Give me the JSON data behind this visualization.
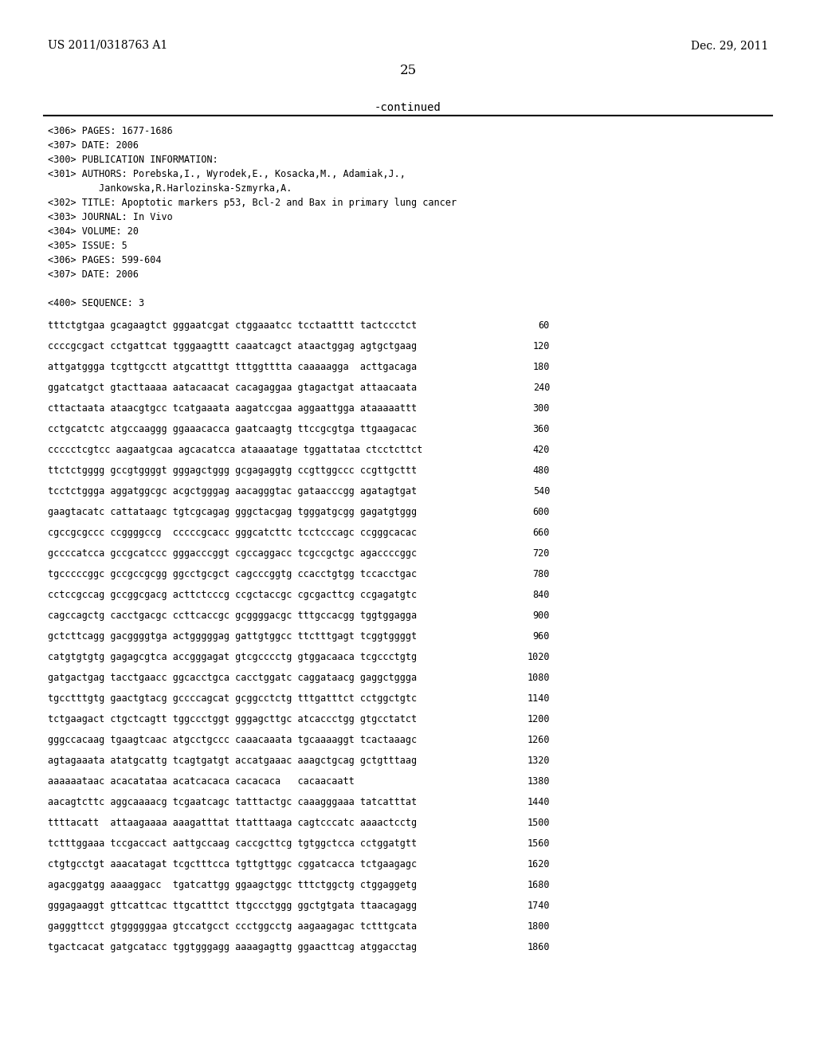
{
  "header_left": "US 2011/0318763 A1",
  "header_right": "Dec. 29, 2011",
  "page_number": "25",
  "continued_text": "-continued",
  "bg_color": "#ffffff",
  "text_color": "#000000",
  "metadata_lines": [
    "<306> PAGES: 1677-1686",
    "<307> DATE: 2006",
    "<300> PUBLICATION INFORMATION:",
    "<301> AUTHORS: Porebska,I., Wyrodek,E., Kosacka,M., Adamiak,J.,",
    "         Jankowska,R.Harlozinska-Szmyrka,A.",
    "<302> TITLE: Apoptotic markers p53, Bcl-2 and Bax in primary lung cancer",
    "<303> JOURNAL: In Vivo",
    "<304> VOLUME: 20",
    "<305> ISSUE: 5",
    "<306> PAGES: 599-604",
    "<307> DATE: 2006",
    "",
    "<400> SEQUENCE: 3"
  ],
  "sequence_lines": [
    [
      "tttctgtgaa gcagaagtct gggaatcgat ctggaaatcc tcctaatttt tactccctct",
      "60"
    ],
    [
      "ccccgcgact cctgattcat tgggaagttt caaatcagct ataactggag agtgctgaag",
      "120"
    ],
    [
      "attgatggga tcgttgcctt atgcatttgt tttggtttta caaaaagga  acttgacaga",
      "180"
    ],
    [
      "ggatcatgct gtacttaaaa aatacaacat cacagaggaa gtagactgat attaacaata",
      "240"
    ],
    [
      "cttactaata ataacgtgcc tcatgaaata aagatccgaa aggaattgga ataaaaattt",
      "300"
    ],
    [
      "cctgcatctc atgccaaggg ggaaacacca gaatcaagtg ttccgcgtga ttgaagacac",
      "360"
    ],
    [
      "ccccctcgtcc aagaatgcaa agcacatcca ataaaatage tggattataa ctcctcttct",
      "420"
    ],
    [
      "ttctctgggg gccgtggggt gggagctggg gcgagaggtg ccgttggccc ccgttgcttt",
      "480"
    ],
    [
      "tcctctggga aggatggcgc acgctgggag aacagggtac gataacccgg agatagtgat",
      "540"
    ],
    [
      "gaagtacatc cattataagc tgtcgcagag gggctacgag tgggatgcgg gagatgtggg",
      "600"
    ],
    [
      "cgccgcgccc ccggggccg  cccccgcacc gggcatcttc tcctcccagc ccgggcacac",
      "660"
    ],
    [
      "gccccatcca gccgcatccc gggacccggt cgccaggacc tcgccgctgc agaccccggc",
      "720"
    ],
    [
      "tgcccccggc gccgccgcgg ggcctgcgct cagcccggtg ccacctgtgg tccacctgac",
      "780"
    ],
    [
      "cctccgccag gccggcgacg acttctcccg ccgctaccgc cgcgacttcg ccgagatgtc",
      "840"
    ],
    [
      "cagccagctg cacctgacgc ccttcaccgc gcggggacgc tttgccacgg tggtggagga",
      "900"
    ],
    [
      "gctcttcagg gacggggtga actgggggag gattgtggcc ttctttgagt tcggtggggt",
      "960"
    ],
    [
      "catgtgtgtg gagagcgtca accgggagat gtcgcccctg gtggacaaca tcgccctgtg",
      "1020"
    ],
    [
      "gatgactgag tacctgaacc ggcacctgca cacctggatc caggataacg gaggctggga",
      "1080"
    ],
    [
      "tgcctttgtg gaactgtacg gccccagcat gcggcctctg tttgatttct cctggctgtc",
      "1140"
    ],
    [
      "tctgaagact ctgctcagtt tggccctggt gggagcttgc atcaccctgg gtgcctatct",
      "1200"
    ],
    [
      "gggccacaag tgaagtcaac atgcctgccc caaacaaata tgcaaaaggt tcactaaagc",
      "1260"
    ],
    [
      "agtagaaata atatgcattg tcagtgatgt accatgaaac aaagctgcag gctgtttaag",
      "1320"
    ],
    [
      "aaaaaataac acacatataa acatcacaca cacacaca   cacaacaatt",
      "1380"
    ],
    [
      "aacagtcttc aggcaaaacg tcgaatcagc tatttactgc caaagggaaa tatcatttat",
      "1440"
    ],
    [
      "ttttacatt  attaagaaaa aaagatttat ttatttaaga cagtcccatc aaaactcctg",
      "1500"
    ],
    [
      "tctttggaaa tccgaccact aattgccaag caccgcttcg tgtggctcca cctggatgtt",
      "1560"
    ],
    [
      "ctgtgcctgt aaacatagat tcgctttcca tgttgttggc cggatcacca tctgaagagc",
      "1620"
    ],
    [
      "agacggatgg aaaaggacc  tgatcattgg ggaagctggc tttctggctg ctggaggetg",
      "1680"
    ],
    [
      "gggagaaggt gttcattcac ttgcatttct ttgccctggg ggctgtgata ttaacagagg",
      "1740"
    ],
    [
      "gagggttcct gtggggggaa gtccatgcct ccctggcctg aagaagagac tctttgcata",
      "1800"
    ],
    [
      "tgactcacat gatgcatacc tggtgggagg aaaagagttg ggaacttcag atggacctag",
      "1860"
    ]
  ]
}
